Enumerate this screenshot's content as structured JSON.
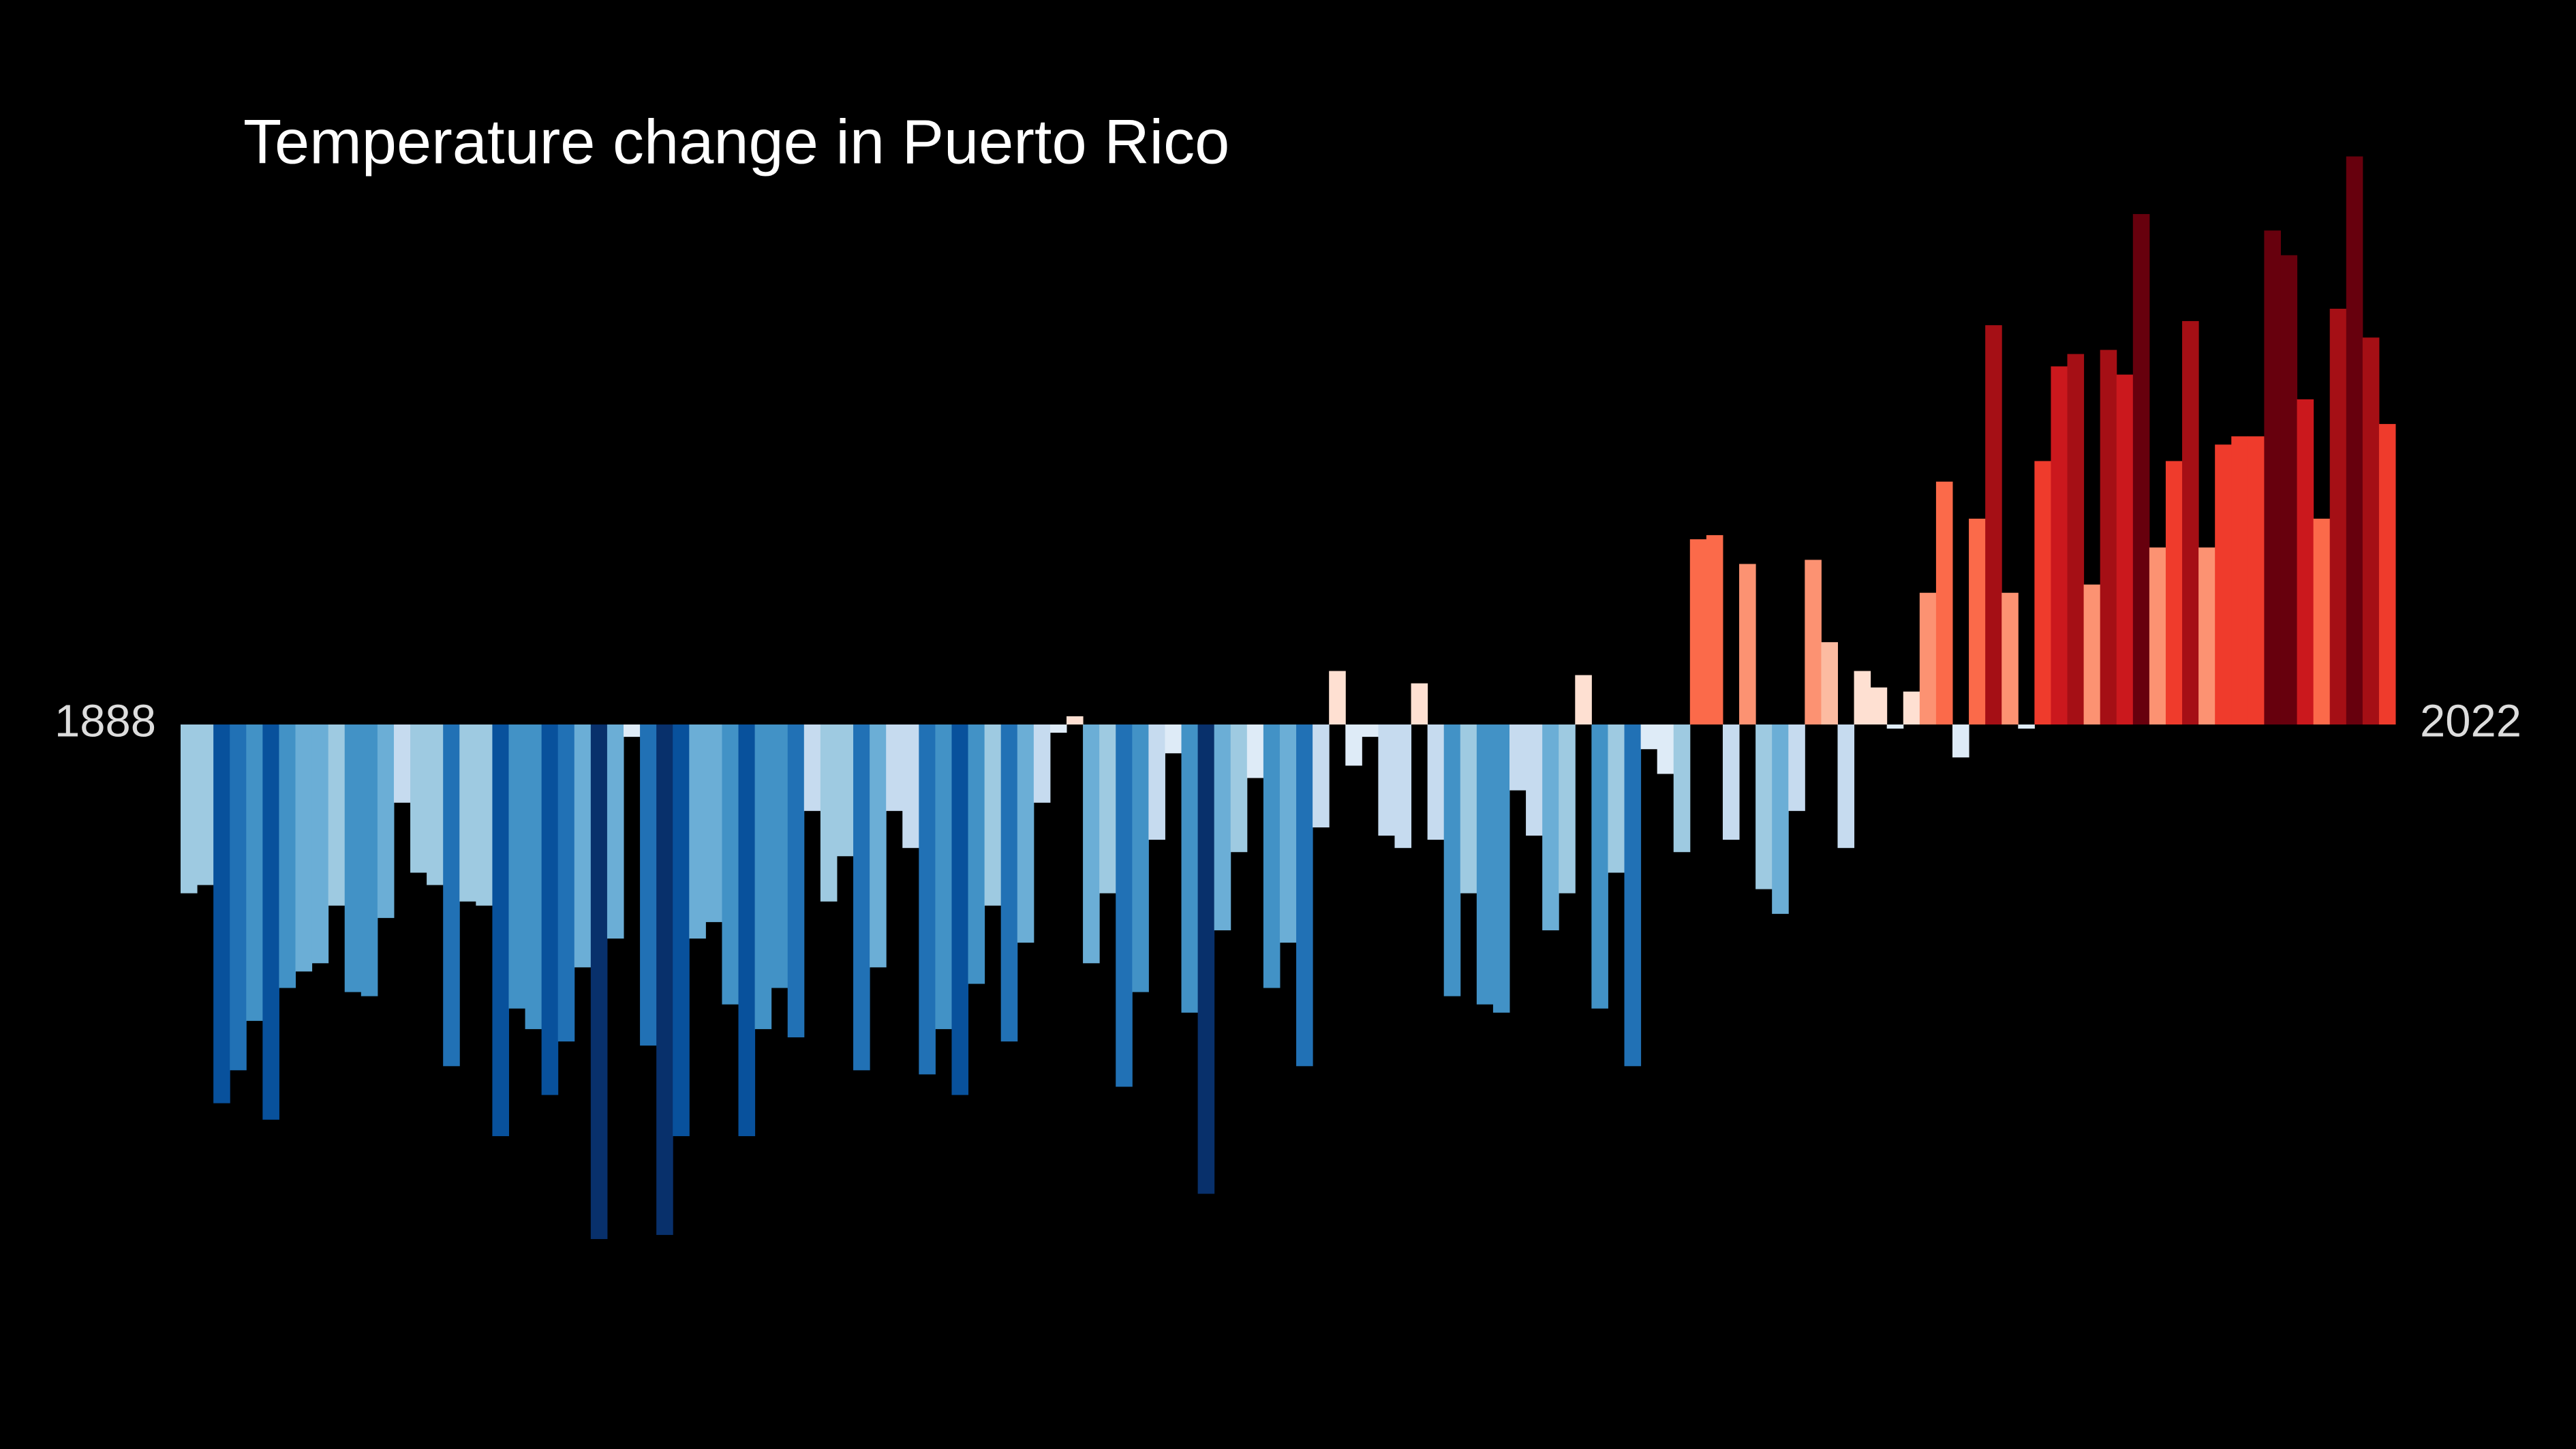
{
  "chart_data": {
    "type": "bar",
    "title": "Temperature change in Puerto Rico",
    "categories": [
      "1888",
      null,
      null,
      null,
      null,
      null,
      null,
      null,
      null,
      null,
      null,
      null,
      null,
      null,
      null,
      null,
      null,
      null,
      null,
      null,
      null,
      null,
      null,
      null,
      null,
      null,
      null,
      null,
      null,
      null,
      null,
      null,
      null,
      null,
      null,
      null,
      null,
      null,
      null,
      null,
      null,
      null,
      null,
      null,
      null,
      null,
      null,
      null,
      null,
      null,
      null,
      null,
      null,
      null,
      null,
      null,
      null,
      null,
      null,
      null,
      null,
      null,
      null,
      null,
      null,
      null,
      null,
      null,
      null,
      null,
      null,
      null,
      null,
      null,
      null,
      null,
      null,
      null,
      null,
      null,
      null,
      null,
      null,
      null,
      null,
      null,
      null,
      null,
      null,
      null,
      null,
      null,
      null,
      null,
      null,
      null,
      null,
      null,
      null,
      null,
      null,
      null,
      null,
      null,
      null,
      null,
      null,
      null,
      null,
      null,
      null,
      null,
      null,
      null,
      null,
      null,
      null,
      null,
      null,
      null,
      null,
      null,
      null,
      null,
      null,
      null,
      null,
      null,
      null,
      null,
      null,
      null,
      null,
      null,
      "2022"
    ],
    "values": [
      -0.41,
      -0.39,
      -0.92,
      -0.84,
      -0.72,
      -0.96,
      -0.64,
      -0.6,
      -0.58,
      -0.44,
      -0.65,
      -0.66,
      -0.47,
      -0.19,
      -0.36,
      -0.39,
      -0.83,
      -0.43,
      -0.44,
      -1.0,
      -0.69,
      -0.74,
      -0.9,
      -0.77,
      -0.59,
      -1.25,
      -0.52,
      -0.03,
      -0.78,
      -1.24,
      -1.0,
      -0.52,
      -0.48,
      -0.68,
      -1.0,
      -0.74,
      -0.64,
      -0.76,
      -0.21,
      -0.43,
      -0.32,
      -0.84,
      -0.59,
      -0.21,
      -0.3,
      -0.85,
      -0.74,
      -0.9,
      -0.63,
      -0.44,
      -0.77,
      -0.53,
      -0.19,
      -0.02,
      0.02,
      -0.58,
      -0.41,
      -0.88,
      -0.65,
      -0.28,
      -0.07,
      -0.7,
      -1.14,
      -0.5,
      -0.31,
      -0.13,
      -0.64,
      -0.53,
      -0.83,
      -0.25,
      0.13,
      -0.1,
      -0.03,
      -0.27,
      -0.3,
      0.1,
      -0.28,
      -0.66,
      -0.41,
      -0.68,
      -0.7,
      -0.16,
      -0.27,
      -0.5,
      -0.41,
      0.12,
      -0.69,
      -0.36,
      -0.83,
      -0.06,
      -0.12,
      -0.31,
      0.45,
      0.46,
      -0.28,
      0.39,
      -0.4,
      -0.46,
      -0.21,
      0.4,
      0.2,
      -0.3,
      0.13,
      0.09,
      -0.01,
      0.08,
      0.32,
      0.59,
      -0.08,
      0.5,
      0.97,
      0.32,
      -0.01,
      0.64,
      0.87,
      0.9,
      0.34,
      0.91,
      0.85,
      1.24,
      0.43,
      0.64,
      0.98,
      0.43,
      0.68,
      0.7,
      0.7,
      1.2,
      1.14,
      0.79,
      0.5,
      1.01,
      1.38,
      0.94,
      0.73
    ],
    "ylim": [
      -1.76,
      1.76
    ],
    "clim": [
      -1.2,
      1.2
    ],
    "colormap": [
      "#08306b",
      "#08519c",
      "#2171b5",
      "#4292c6",
      "#6baed6",
      "#9ecae1",
      "#c6dbef",
      "#deebf7",
      "#fee0d2",
      "#fcbba1",
      "#fc9272",
      "#fb6a4a",
      "#ef3b2c",
      "#cb181d",
      "#a50f15",
      "#67000d"
    ]
  }
}
